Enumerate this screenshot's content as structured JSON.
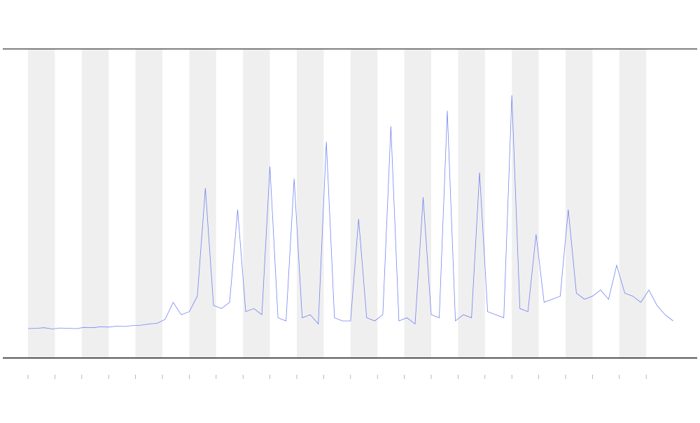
{
  "chart_data": {
    "type": "line",
    "x": [
      0,
      0.3,
      0.6,
      0.9,
      1.2,
      1.5,
      1.8,
      2.1,
      2.4,
      2.7,
      3,
      3.3,
      3.6,
      3.9,
      4.2,
      4.5,
      4.8,
      5.1,
      5.4,
      5.7,
      6,
      6.3,
      6.6,
      6.9,
      7.2,
      7.5,
      7.8,
      8.1,
      8.4,
      8.7,
      9,
      9.3,
      9.6,
      9.9,
      10.2,
      10.5,
      10.8,
      11.1,
      11.4,
      11.7,
      12,
      12.3,
      12.6,
      12.9,
      13.2,
      13.5,
      13.8,
      14.1,
      14.4,
      14.7,
      15,
      15.3,
      15.6,
      15.9,
      16.2,
      16.5,
      16.8,
      17.1,
      17.4,
      17.7,
      18,
      18.3,
      18.6,
      18.9,
      19.2,
      19.5,
      19.8,
      20.1,
      20.4,
      20.7,
      21,
      21.3,
      21.6,
      21.9,
      22.2,
      22.5,
      22.8,
      23.1,
      23.4,
      23.7,
      24
    ],
    "series": [
      {
        "color": "#4a5cf0",
        "values": [
          9.5,
          9.6,
          9.8,
          9.4,
          9.7,
          9.6,
          9.5,
          9.9,
          9.8,
          10.1,
          10.0,
          10.3,
          10.2,
          10.5,
          10.6,
          11.0,
          11.2,
          12.5,
          18,
          14,
          15,
          20,
          55,
          17,
          16,
          18,
          48,
          15,
          16,
          14,
          62,
          13,
          12,
          58,
          13,
          14,
          11,
          70,
          13,
          12,
          12,
          45,
          13,
          12,
          14,
          75,
          12,
          13,
          11,
          52,
          14,
          13,
          80,
          12,
          14,
          13,
          60,
          15,
          14,
          13,
          85,
          16,
          15,
          40,
          18,
          19,
          20,
          48,
          21,
          19,
          20,
          22,
          19,
          30,
          21,
          20,
          18,
          22,
          17,
          14,
          12
        ]
      }
    ],
    "xlim": [
      0,
      24
    ],
    "ylim": [
      0,
      100
    ],
    "xticks": [
      0,
      1,
      2,
      3,
      4,
      5,
      6,
      7,
      8,
      9,
      10,
      11,
      12,
      13,
      14,
      15,
      16,
      17,
      18,
      19,
      20,
      21,
      22,
      23
    ]
  }
}
